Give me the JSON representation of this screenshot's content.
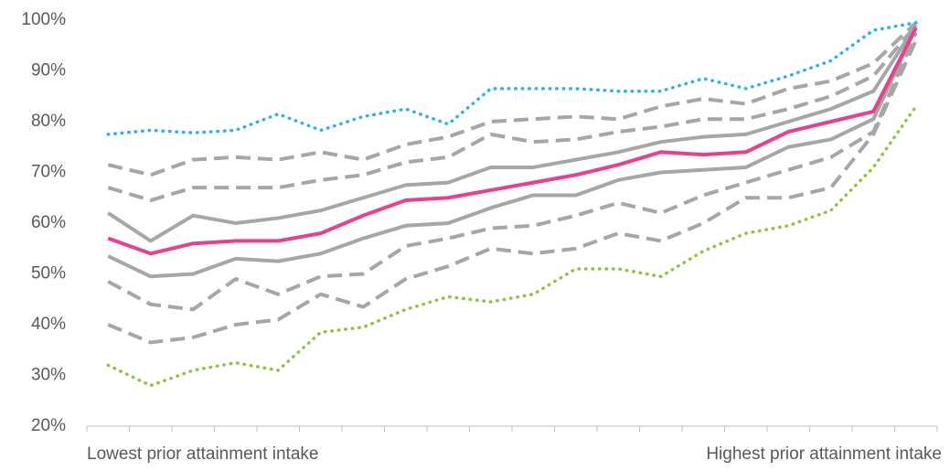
{
  "chart_data": {
    "type": "line",
    "categories": [
      "Lowest prior attainment intake",
      null,
      null,
      null,
      null,
      null,
      null,
      null,
      null,
      null,
      null,
      null,
      null,
      null,
      null,
      null,
      null,
      null,
      null,
      "Highest prior attainment intake"
    ],
    "ylim": [
      20,
      100
    ],
    "yticks": [
      {
        "value": 20,
        "label": "20%"
      },
      {
        "value": 30,
        "label": "30%"
      },
      {
        "value": 40,
        "label": "40%"
      },
      {
        "value": 50,
        "label": "50%"
      },
      {
        "value": 60,
        "label": "60%"
      },
      {
        "value": 70,
        "label": "70%"
      },
      {
        "value": 80,
        "label": "80%"
      },
      {
        "value": 90,
        "label": "90%"
      },
      {
        "value": 100,
        "label": "100%"
      }
    ],
    "grid": false,
    "series": [
      {
        "color": "#a6a6a6",
        "style": "dashed",
        "values": [
          71.5,
          69.5,
          72.5,
          73,
          72.5,
          74,
          72.5,
          75.5,
          77,
          80,
          80.5,
          81,
          80.5,
          83,
          84.5,
          83.5,
          86.5,
          88,
          91.5,
          99.5
        ]
      },
      {
        "color": "#a6a6a6",
        "style": "dashed",
        "values": [
          67,
          64.5,
          67,
          67,
          67,
          68.5,
          69.5,
          72,
          73,
          77.5,
          76,
          76.5,
          78,
          79,
          80.5,
          80.5,
          82.5,
          85,
          89,
          99
        ]
      },
      {
        "color": "#a6a6a6",
        "style": "solid",
        "values": [
          62,
          56.5,
          61.5,
          60,
          61,
          62.5,
          65,
          67.5,
          68,
          71,
          71,
          72.5,
          74,
          76,
          77,
          77.5,
          80,
          82.5,
          86,
          99
        ]
      },
      {
        "color": "#a6a6a6",
        "style": "solid",
        "values": [
          53.5,
          49.5,
          50,
          53,
          52.5,
          54,
          57,
          59.5,
          60,
          63,
          65.5,
          65.5,
          68.5,
          70,
          70.5,
          71,
          75,
          76.5,
          80.5,
          98.5
        ]
      },
      {
        "color": "#a6a6a6",
        "style": "dashed",
        "values": [
          48.5,
          44,
          43,
          49,
          46,
          49.5,
          50,
          55.5,
          57,
          59,
          59.5,
          61.5,
          64,
          62,
          65.5,
          68,
          70.5,
          73,
          78,
          97.5
        ]
      },
      {
        "color": "#a6a6a6",
        "style": "dashed",
        "values": [
          40,
          36.5,
          37.5,
          40,
          41,
          46,
          43.5,
          49,
          51.5,
          55,
          54,
          55,
          58,
          56.5,
          60,
          65,
          65,
          67,
          77.5,
          96
        ]
      },
      {
        "color": "#e8408f",
        "style": "solid",
        "values": [
          57,
          54,
          56,
          56.5,
          56.5,
          58,
          61.5,
          64.5,
          65,
          66.5,
          68,
          69.5,
          71.5,
          74,
          73.5,
          74,
          78,
          80,
          82,
          98.5
        ]
      },
      {
        "color": "#2bb5e0",
        "style": "dotted",
        "values": [
          77.5,
          78.3,
          77.8,
          78.3,
          81.5,
          78.3,
          81,
          82.5,
          79.5,
          86.5,
          86.5,
          86.5,
          86,
          86,
          88.5,
          86.5,
          89,
          92,
          98,
          99.5
        ]
      },
      {
        "color": "#8dc63f",
        "style": "dotted",
        "values": [
          32,
          28,
          31,
          32.5,
          31,
          38.5,
          39.5,
          43,
          45.5,
          44.5,
          46,
          51,
          51,
          49.5,
          54.5,
          58,
          59.5,
          62.5,
          71,
          83
        ]
      }
    ]
  }
}
